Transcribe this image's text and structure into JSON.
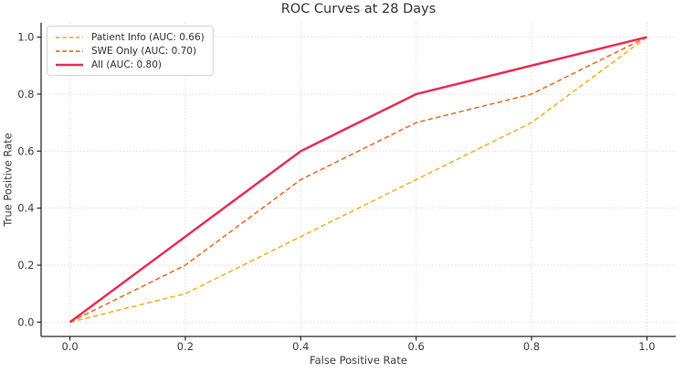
{
  "figure": {
    "background": "#ffffff",
    "text_color": "#333333"
  },
  "chart_data": {
    "type": "line",
    "title": "ROC Curves at 28 Days",
    "xlabel": "False Positive Rate",
    "ylabel": "True Positive Rate",
    "xlim": [
      -0.05,
      1.05
    ],
    "ylim": [
      -0.05,
      1.05
    ],
    "xticks": [
      0.0,
      0.2,
      0.4,
      0.6,
      0.8,
      1.0
    ],
    "yticks": [
      0.0,
      0.2,
      0.4,
      0.6,
      0.8,
      1.0
    ],
    "grid": true,
    "grid_color": "#e2e2e2",
    "spine_color": "#2b2b2b",
    "tick_label_color": "#3d3d3d",
    "legend_position": "upper left",
    "series": [
      {
        "name": "Patient Info (AUC: 0.66)",
        "auc": 0.66,
        "color": "#F3B32B",
        "style": "dashed",
        "width": 1.6,
        "x": [
          0.0,
          0.2,
          0.4,
          0.6,
          0.8,
          1.0
        ],
        "y": [
          0.0,
          0.1,
          0.3,
          0.5,
          0.7,
          1.0
        ]
      },
      {
        "name": "SWE Only (AUC: 0.70)",
        "auc": 0.7,
        "color": "#EE6F30",
        "style": "dashed",
        "width": 1.6,
        "x": [
          0.0,
          0.2,
          0.4,
          0.6,
          0.8,
          1.0
        ],
        "y": [
          0.0,
          0.2,
          0.5,
          0.7,
          0.8,
          1.0
        ]
      },
      {
        "name": "All (AUC: 0.80)",
        "auc": 0.8,
        "color": "#E62E56",
        "style": "solid",
        "width": 2.5,
        "x": [
          0.0,
          0.2,
          0.4,
          0.6,
          0.8,
          1.0
        ],
        "y": [
          0.0,
          0.3,
          0.6,
          0.8,
          0.9,
          1.0
        ]
      }
    ]
  }
}
